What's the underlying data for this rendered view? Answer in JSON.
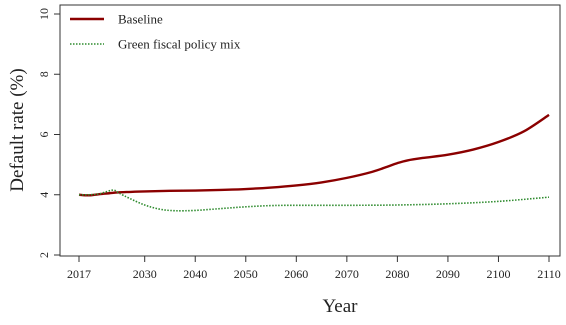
{
  "chart_data": {
    "type": "line",
    "xlabel": "Year",
    "ylabel": "Default rate (%)",
    "xlim": [
      2017,
      2110
    ],
    "ylim": [
      2,
      10
    ],
    "x_ticks": [
      2017,
      2030,
      2040,
      2050,
      2060,
      2070,
      2080,
      2090,
      2100,
      2110
    ],
    "y_ticks": [
      2,
      4,
      6,
      8,
      10
    ],
    "grid": false,
    "legend_position": "top-left",
    "series": [
      {
        "name": "Baseline",
        "color": "#8b0000",
        "style": "solid",
        "x": [
          2017,
          2019,
          2021,
          2023,
          2025,
          2030,
          2035,
          2040,
          2045,
          2050,
          2055,
          2060,
          2065,
          2070,
          2075,
          2078,
          2080,
          2082,
          2085,
          2090,
          2095,
          2100,
          2105,
          2110
        ],
        "values": [
          4.0,
          3.98,
          4.02,
          4.05,
          4.08,
          4.11,
          4.13,
          4.14,
          4.16,
          4.19,
          4.24,
          4.31,
          4.41,
          4.56,
          4.76,
          4.93,
          5.05,
          5.14,
          5.22,
          5.33,
          5.5,
          5.75,
          6.1,
          6.65
        ]
      },
      {
        "name": "Green fiscal policy mix",
        "color": "#2e8b2e",
        "style": "dotted",
        "x": [
          2017,
          2019,
          2021,
          2023,
          2024,
          2025,
          2027,
          2030,
          2033,
          2036,
          2040,
          2045,
          2050,
          2055,
          2060,
          2070,
          2080,
          2090,
          2100,
          2110
        ],
        "values": [
          4.0,
          4.0,
          4.03,
          4.13,
          4.15,
          4.05,
          3.88,
          3.66,
          3.52,
          3.47,
          3.48,
          3.54,
          3.6,
          3.64,
          3.65,
          3.65,
          3.66,
          3.7,
          3.78,
          3.92
        ]
      }
    ]
  }
}
